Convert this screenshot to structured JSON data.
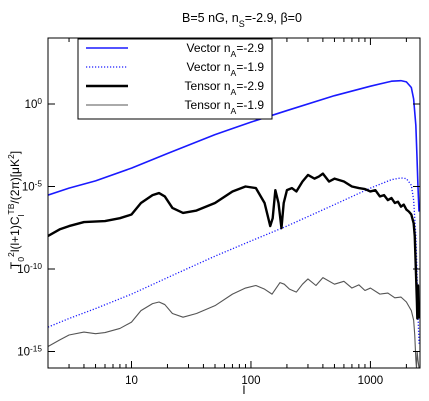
{
  "chart_data": {
    "type": "line",
    "title": "B=5 nG, n_S=-2.9, β=0",
    "title_parts": [
      "B=5 nG, n",
      "S",
      "=-2.9, β=0"
    ],
    "xlabel": "l",
    "ylabel_parts": [
      "T",
      "0",
      "2",
      "l(l+1)C",
      "l",
      "TB",
      "/(2π)[μK",
      "2",
      "]"
    ],
    "x_scale": "log",
    "y_scale": "log",
    "xlim": [
      2,
      2600
    ],
    "ylim": [
      1e-16,
      10000.0
    ],
    "x_ticks": [
      {
        "value": 10,
        "label": "10"
      },
      {
        "value": 100,
        "label": "100"
      },
      {
        "value": 1000,
        "label": "1000"
      }
    ],
    "y_ticks": [
      {
        "value": 1,
        "base": "10",
        "exp": "0"
      },
      {
        "value": 1e-05,
        "base": "10",
        "exp": "-5"
      },
      {
        "value": 1e-10,
        "base": "10",
        "exp": "-10"
      },
      {
        "value": 1e-15,
        "base": "10",
        "exp": "-15"
      }
    ],
    "grid": false,
    "legend_position": "top-left",
    "series": [
      {
        "name": "Vector n_A=-2.9",
        "name_parts": [
          "Vector n",
          "A",
          "=-2.9"
        ],
        "color": "#1a1aff",
        "style": "solid",
        "width": 1.6,
        "points": [
          [
            2,
            3e-06
          ],
          [
            3,
            8e-06
          ],
          [
            5,
            2.2e-05
          ],
          [
            10,
            0.00013
          ],
          [
            20,
            0.001
          ],
          [
            50,
            0.014
          ],
          [
            100,
            0.08
          ],
          [
            200,
            0.4
          ],
          [
            500,
            3.2
          ],
          [
            1000,
            12
          ],
          [
            1500,
            24
          ],
          [
            1800,
            26
          ],
          [
            2000,
            22
          ],
          [
            2200,
            10
          ],
          [
            2300,
            2.0
          ],
          [
            2400,
            0.05
          ],
          [
            2450,
            0.0008
          ],
          [
            2500,
            1e-05
          ],
          [
            2550,
            3e-07
          ]
        ]
      },
      {
        "name": "Vector n_A=-1.9",
        "name_parts": [
          "Vector n",
          "A",
          "=-1.9"
        ],
        "color": "#1a1aff",
        "style": "dotted",
        "width": 1.3,
        "points": [
          [
            2,
            3e-14
          ],
          [
            3,
            1e-13
          ],
          [
            5,
            4e-13
          ],
          [
            10,
            3e-12
          ],
          [
            20,
            3e-11
          ],
          [
            50,
            6e-10
          ],
          [
            100,
            5e-09
          ],
          [
            200,
            4e-08
          ],
          [
            500,
            8e-07
          ],
          [
            1000,
            8e-06
          ],
          [
            1500,
            2.6e-05
          ],
          [
            1800,
            3.3e-05
          ],
          [
            2000,
            3e-05
          ],
          [
            2200,
            1.2e-05
          ],
          [
            2300,
            1.5e-06
          ],
          [
            2400,
            1e-08
          ],
          [
            2450,
            1e-10
          ],
          [
            2500,
            2e-13
          ],
          [
            2550,
            3e-15
          ]
        ]
      },
      {
        "name": "Tensor n_A=-2.9",
        "name_parts": [
          "Tensor n",
          "A",
          "=-2.9"
        ],
        "color": "#000000",
        "style": "solid",
        "width": 2.4,
        "points": [
          [
            2,
            1e-08
          ],
          [
            2.5,
            2.5e-08
          ],
          [
            3,
            4e-08
          ],
          [
            4,
            7e-08
          ],
          [
            6,
            8e-08
          ],
          [
            8,
            1.2e-07
          ],
          [
            10,
            2e-07
          ],
          [
            12,
            1e-06
          ],
          [
            15,
            3e-06
          ],
          [
            17,
            4e-06
          ],
          [
            19,
            2.5e-06
          ],
          [
            22,
            5e-07
          ],
          [
            27,
            2.5e-07
          ],
          [
            35,
            3.5e-07
          ],
          [
            50,
            1e-06
          ],
          [
            70,
            5e-06
          ],
          [
            90,
            1e-05
          ],
          [
            110,
            8e-06
          ],
          [
            130,
            1e-06
          ],
          [
            145,
            4e-08
          ],
          [
            152,
            1.2e-07
          ],
          [
            160,
            6e-06
          ],
          [
            170,
            1e-06
          ],
          [
            180,
            3e-08
          ],
          [
            188,
            1e-06
          ],
          [
            200,
            6e-06
          ],
          [
            220,
            8e-06
          ],
          [
            240,
            5e-06
          ],
          [
            270,
            2e-05
          ],
          [
            300,
            5e-05
          ],
          [
            340,
            3e-05
          ],
          [
            370,
            4e-05
          ],
          [
            400,
            6e-05
          ],
          [
            450,
            2e-05
          ],
          [
            500,
            3e-05
          ],
          [
            600,
            2e-05
          ],
          [
            700,
            1e-05
          ],
          [
            800,
            8e-06
          ],
          [
            900,
            7e-06
          ],
          [
            1000,
            5e-06
          ],
          [
            1100,
            6e-06
          ],
          [
            1200,
            2.5e-06
          ],
          [
            1300,
            3e-06
          ],
          [
            1400,
            1.5e-06
          ],
          [
            1500,
            2e-06
          ],
          [
            1600,
            1e-06
          ],
          [
            1700,
            1.2e-06
          ],
          [
            1800,
            6e-07
          ],
          [
            1900,
            8e-07
          ],
          [
            2000,
            4e-07
          ],
          [
            2100,
            3e-07
          ],
          [
            2200,
            2e-07
          ],
          [
            2300,
            6e-08
          ],
          [
            2350,
            1e-08
          ],
          [
            2400,
            1e-10
          ],
          [
            2450,
            1e-12
          ],
          [
            2470,
            1e-13
          ],
          [
            2490,
            1e-12
          ],
          [
            2500,
            1e-11
          ],
          [
            2530,
            1e-13
          ]
        ]
      },
      {
        "name": "Tensor n_A=-1.9",
        "name_parts": [
          "Tensor n",
          "A",
          "=-1.9"
        ],
        "color": "#555555",
        "style": "solid",
        "width": 1.1,
        "points": [
          [
            2,
            2e-15
          ],
          [
            2.5,
            5e-15
          ],
          [
            3,
            1e-14
          ],
          [
            4,
            1.5e-14
          ],
          [
            5,
            1.2e-14
          ],
          [
            6,
            1.4e-14
          ],
          [
            8,
            2.5e-14
          ],
          [
            10,
            6e-14
          ],
          [
            12,
            3e-13
          ],
          [
            15,
            8e-13
          ],
          [
            17,
            1e-12
          ],
          [
            19,
            7e-13
          ],
          [
            22,
            2e-13
          ],
          [
            27,
            1.2e-13
          ],
          [
            35,
            2e-13
          ],
          [
            50,
            6e-13
          ],
          [
            70,
            3e-12
          ],
          [
            90,
            7e-12
          ],
          [
            110,
            1e-11
          ],
          [
            130,
            6e-12
          ],
          [
            150,
            3e-12
          ],
          [
            175,
            1.5e-11
          ],
          [
            190,
            1.2e-11
          ],
          [
            210,
            6e-12
          ],
          [
            240,
            4e-12
          ],
          [
            270,
            1.2e-11
          ],
          [
            300,
            2.5e-11
          ],
          [
            350,
            1e-11
          ],
          [
            400,
            3e-11
          ],
          [
            500,
            1.2e-11
          ],
          [
            600,
            1.8e-11
          ],
          [
            700,
            7e-12
          ],
          [
            800,
            1.1e-11
          ],
          [
            900,
            5e-12
          ],
          [
            1000,
            7e-12
          ],
          [
            1200,
            3e-12
          ],
          [
            1400,
            3.5e-12
          ],
          [
            1600,
            1.8e-12
          ],
          [
            1800,
            2e-12
          ],
          [
            2000,
            1e-12
          ],
          [
            2200,
            3e-13
          ],
          [
            2300,
            8e-14
          ],
          [
            2350,
            1e-14
          ],
          [
            2400,
            3e-16
          ],
          [
            2430,
            1e-16
          ],
          [
            2460,
            1e-15
          ],
          [
            2500,
            3e-16
          ],
          [
            2550,
            1e-16
          ]
        ]
      }
    ]
  }
}
